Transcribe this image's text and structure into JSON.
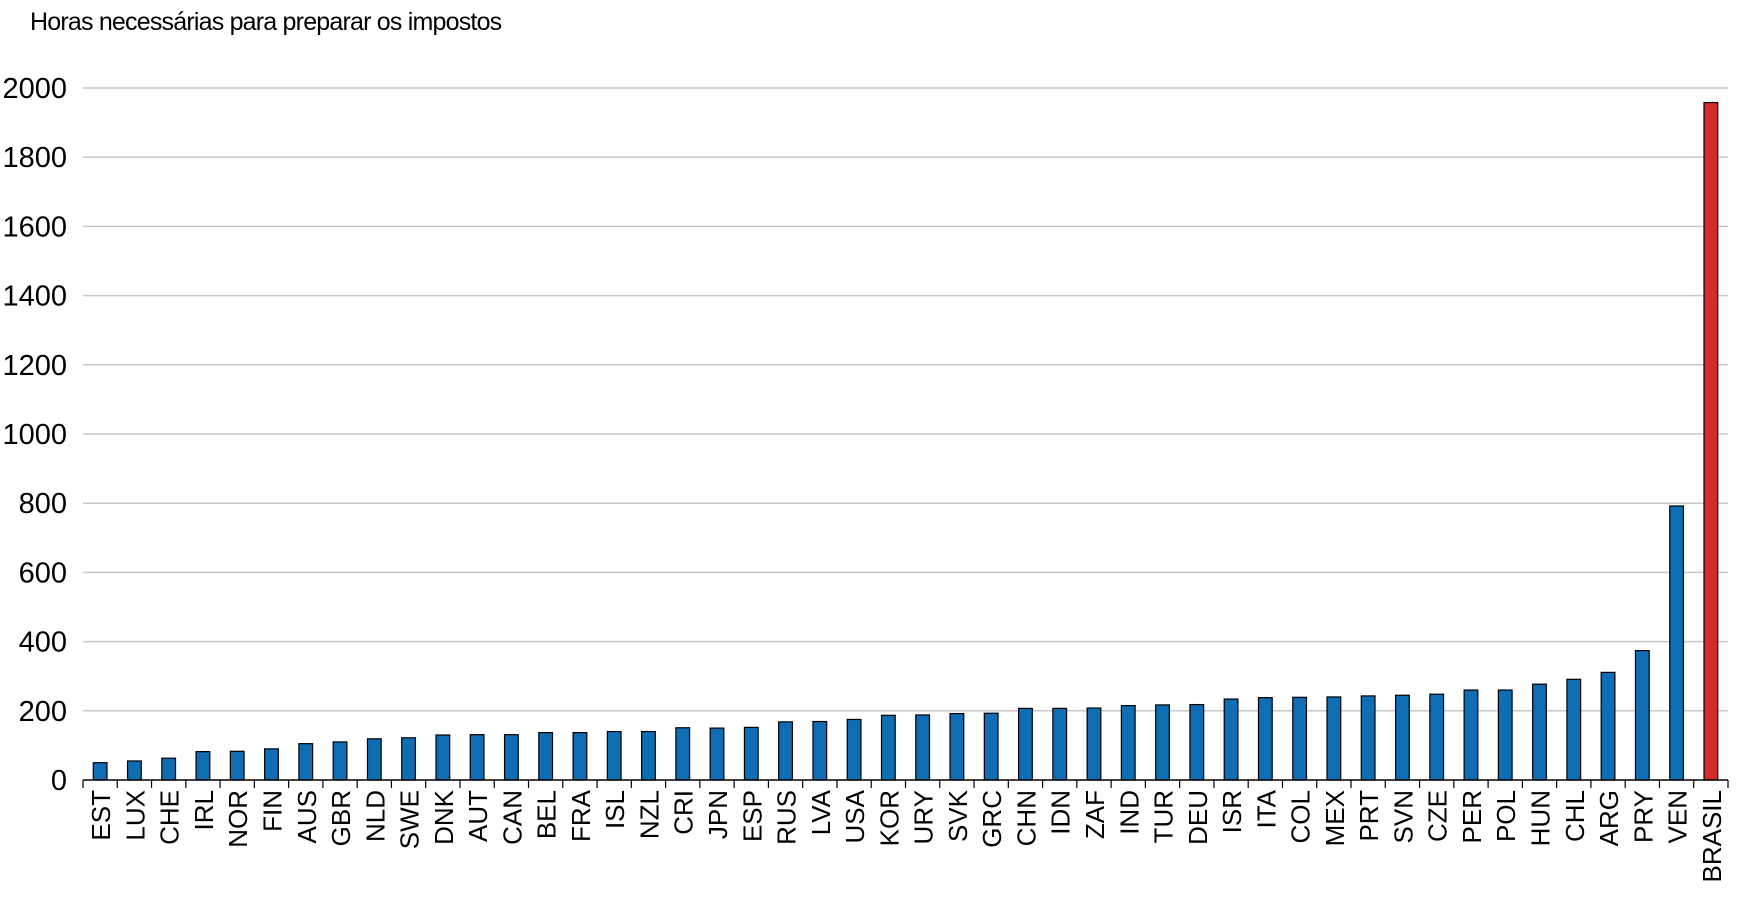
{
  "colors": {
    "bar": "#0f6db3",
    "highlight": "#d52b2b",
    "grid": "#c8c8c8",
    "axis": "#000000",
    "text": "#000000"
  },
  "chart_data": {
    "type": "bar",
    "title": "Horas necessárias para preparar os impostos",
    "xlabel": "",
    "ylabel": "",
    "ylim": [
      0,
      2000
    ],
    "yticks": [
      0,
      200,
      400,
      600,
      800,
      1000,
      1200,
      1400,
      1600,
      1800,
      2000
    ],
    "grid": true,
    "legend": "none",
    "categories": [
      "EST",
      "LUX",
      "CHE",
      "IRL",
      "NOR",
      "FIN",
      "AUS",
      "GBR",
      "NLD",
      "SWE",
      "DNK",
      "AUT",
      "CAN",
      "BEL",
      "FRA",
      "ISL",
      "NZL",
      "CRI",
      "JPN",
      "ESP",
      "RUS",
      "LVA",
      "USA",
      "KOR",
      "URY",
      "SVK",
      "GRC",
      "CHN",
      "IDN",
      "ZAF",
      "IND",
      "TUR",
      "DEU",
      "ISR",
      "ITA",
      "COL",
      "MEX",
      "PRT",
      "SVN",
      "CZE",
      "PER",
      "POL",
      "HUN",
      "CHL",
      "ARG",
      "PRY",
      "VEN",
      "BRASIL"
    ],
    "values": [
      50,
      55,
      63,
      82,
      83,
      90,
      105,
      110,
      119,
      122,
      130,
      131,
      131,
      137,
      137,
      140,
      140,
      151,
      150,
      152,
      168,
      169,
      175,
      187,
      188,
      192,
      193,
      207,
      207,
      208,
      215,
      217,
      218,
      234,
      238,
      239,
      240,
      243,
      245,
      248,
      260,
      260,
      277,
      291,
      311,
      374,
      792,
      1958
    ],
    "highlight_category": "BRASIL"
  }
}
